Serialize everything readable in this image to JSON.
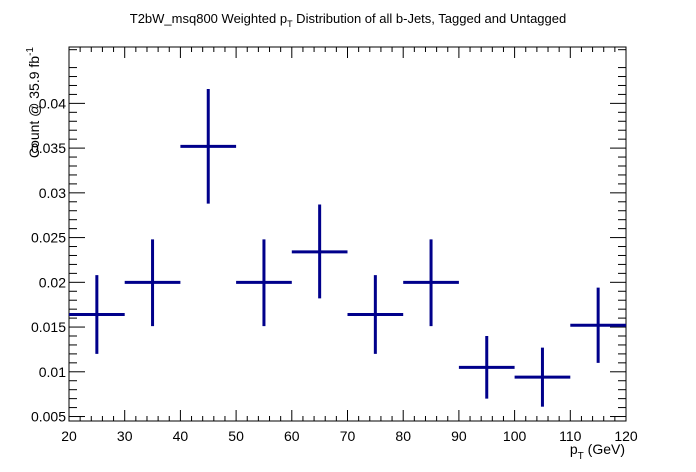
{
  "chart_data": {
    "type": "scatter",
    "title": {
      "pre": "T2bW_msq800 Weighted p",
      "sub": "T",
      "post": " Distribution of all b-Jets, Tagged and Untagged"
    },
    "xlabel": {
      "pre": "p",
      "sub": "T",
      "post": " (GeV)"
    },
    "ylabel": {
      "pre": "Count @ 35.9 fb",
      "sup": "-1"
    },
    "xlim": [
      20,
      120
    ],
    "ylim": [
      0.0045,
      0.0463
    ],
    "x_ticks": [
      "20",
      "30",
      "40",
      "50",
      "60",
      "70",
      "80",
      "90",
      "100",
      "110",
      "120"
    ],
    "y_ticks": [
      "0.005",
      "0.01",
      "0.015",
      "0.02",
      "0.025",
      "0.03",
      "0.035",
      "0.04"
    ],
    "grid": false,
    "color": "#00008b",
    "series": [
      {
        "points": [
          {
            "x": 25,
            "xlo": 20,
            "xhi": 30,
            "y": 0.0164,
            "ylo": 0.012,
            "yhi": 0.0208
          },
          {
            "x": 35,
            "xlo": 30,
            "xhi": 40,
            "y": 0.02,
            "ylo": 0.0151,
            "yhi": 0.0248
          },
          {
            "x": 45,
            "xlo": 40,
            "xhi": 50,
            "y": 0.0352,
            "ylo": 0.0288,
            "yhi": 0.0416
          },
          {
            "x": 55,
            "xlo": 50,
            "xhi": 60,
            "y": 0.02,
            "ylo": 0.0151,
            "yhi": 0.0248
          },
          {
            "x": 65,
            "xlo": 60,
            "xhi": 70,
            "y": 0.0234,
            "ylo": 0.0182,
            "yhi": 0.0287
          },
          {
            "x": 75,
            "xlo": 70,
            "xhi": 80,
            "y": 0.0164,
            "ylo": 0.012,
            "yhi": 0.0208
          },
          {
            "x": 85,
            "xlo": 80,
            "xhi": 90,
            "y": 0.02,
            "ylo": 0.0151,
            "yhi": 0.0248
          },
          {
            "x": 95,
            "xlo": 90,
            "xhi": 100,
            "y": 0.0105,
            "ylo": 0.007,
            "yhi": 0.014
          },
          {
            "x": 105,
            "xlo": 100,
            "xhi": 110,
            "y": 0.0094,
            "ylo": 0.0061,
            "yhi": 0.0127
          },
          {
            "x": 115,
            "xlo": 110,
            "xhi": 120,
            "y": 0.0152,
            "ylo": 0.011,
            "yhi": 0.0194
          }
        ]
      }
    ]
  }
}
